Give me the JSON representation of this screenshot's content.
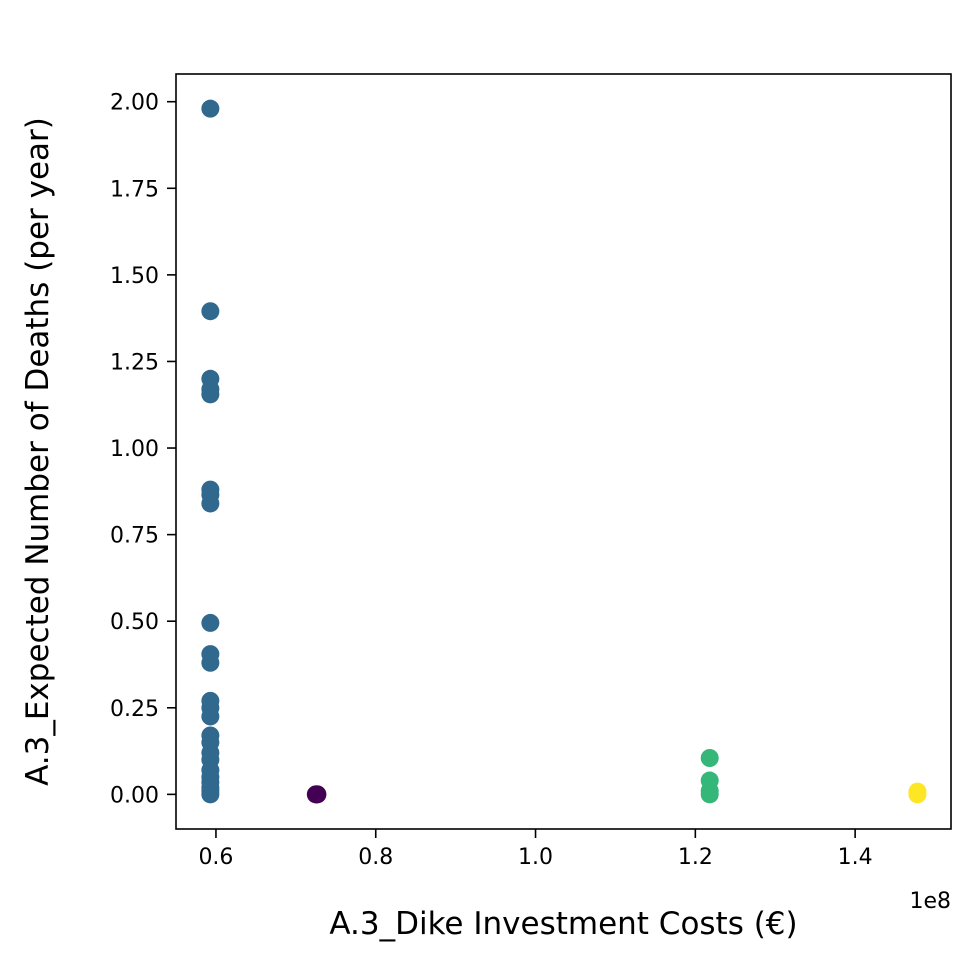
{
  "chart_data": {
    "type": "scatter",
    "xlabel": "A.3_Dike Investment Costs (€)",
    "ylabel": "A.3_Expected Number of Deaths (per year)",
    "x_offset_label": "1e8",
    "xlim": [
      0.55,
      1.52
    ],
    "ylim": [
      -0.1,
      2.08
    ],
    "x_ticks": [
      0.6,
      0.8,
      1.0,
      1.2,
      1.4
    ],
    "x_tick_labels": [
      "0.6",
      "0.8",
      "1.0",
      "1.2",
      "1.4"
    ],
    "y_ticks": [
      0.0,
      0.25,
      0.5,
      0.75,
      1.0,
      1.25,
      1.5,
      1.75,
      2.0
    ],
    "y_tick_labels": [
      "0.00",
      "0.25",
      "0.50",
      "0.75",
      "1.00",
      "1.25",
      "1.50",
      "1.75",
      "2.00"
    ],
    "grid": false,
    "series": [
      {
        "color": "#31688e",
        "points": [
          [
            0.593,
            1.98
          ],
          [
            0.593,
            1.395
          ],
          [
            0.593,
            1.2
          ],
          [
            0.593,
            1.17
          ],
          [
            0.593,
            1.155
          ],
          [
            0.593,
            0.88
          ],
          [
            0.593,
            0.865
          ],
          [
            0.593,
            0.84
          ],
          [
            0.593,
            0.495
          ],
          [
            0.593,
            0.405
          ],
          [
            0.593,
            0.38
          ],
          [
            0.593,
            0.27
          ],
          [
            0.593,
            0.25
          ],
          [
            0.593,
            0.225
          ],
          [
            0.593,
            0.17
          ],
          [
            0.593,
            0.15
          ],
          [
            0.593,
            0.12
          ],
          [
            0.593,
            0.1
          ],
          [
            0.593,
            0.07
          ],
          [
            0.593,
            0.05
          ],
          [
            0.593,
            0.035
          ],
          [
            0.593,
            0.02
          ],
          [
            0.593,
            0.01
          ],
          [
            0.593,
            0.0
          ]
        ]
      },
      {
        "color": "#440154",
        "points": [
          [
            0.726,
            0.0
          ],
          [
            0.725,
            0.0
          ],
          [
            0.727,
            0.0
          ]
        ]
      },
      {
        "color": "#35b779",
        "points": [
          [
            1.218,
            0.105
          ],
          [
            1.218,
            0.04
          ],
          [
            1.218,
            0.01
          ],
          [
            1.218,
            0.0
          ]
        ]
      },
      {
        "color": "#fde725",
        "points": [
          [
            1.478,
            0.008
          ],
          [
            1.478,
            0.0
          ]
        ]
      }
    ]
  }
}
